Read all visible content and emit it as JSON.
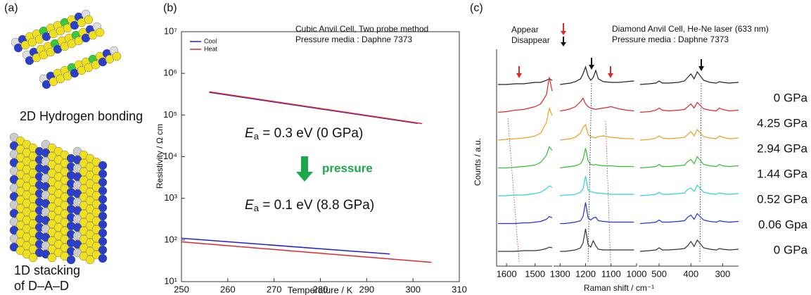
{
  "panel_a": {
    "label": "(a)",
    "captions": [
      "2D Hydrogen bonding",
      "1D stacking",
      "of D–A–D"
    ]
  },
  "chart_data": [
    {
      "type": "line",
      "panel_label": "(b)",
      "annotations": [
        "Cubic Anvil Cell, Two probe method",
        "Pressure media : Daphne 7373",
        "pressure"
      ],
      "equations": [
        {
          "symbol": "E",
          "subscript": "a",
          "text": " = 0.3 eV (0 GPa)"
        },
        {
          "symbol": "E",
          "subscript": "a",
          "text": " = 0.1 eV (8.8 GPa)"
        }
      ],
      "xlabel": "Temperature / K",
      "ylabel": "Resistivity / Ω cm",
      "log_y": true,
      "legend": "upper left",
      "xlim": [
        250,
        310
      ],
      "xticks": [
        250,
        260,
        270,
        280,
        290,
        300,
        310
      ],
      "ylim": [
        10,
        10000000
      ],
      "yticks": [
        {
          "value": 10,
          "label": "10¹"
        },
        {
          "value": 100,
          "label": "10²"
        },
        {
          "value": 1000,
          "label": "10³"
        },
        {
          "value": 10000,
          "label": "10⁴"
        },
        {
          "value": 100000,
          "label": "10⁵"
        },
        {
          "value": 1000000,
          "label": "10⁶"
        },
        {
          "value": 10000000,
          "label": "10⁷"
        }
      ],
      "series": [
        {
          "name": "Cool",
          "color": "#2222d0",
          "segments": [
            {
              "x": [
                256,
                301
              ],
              "values": [
                350000,
                63000
              ]
            },
            {
              "x": [
                250,
                295
              ],
              "values": [
                110,
                46
              ]
            }
          ]
        },
        {
          "name": "Heat",
          "color": "#e0282a",
          "segments": [
            {
              "x": [
                256,
                302
              ],
              "values": [
                360000,
                62000
              ]
            },
            {
              "x": [
                250,
                304
              ],
              "values": [
                90,
                29
              ]
            }
          ]
        }
      ]
    },
    {
      "type": "spectra",
      "panel_label": "(c)",
      "annotations": [
        "Appear",
        "Disappear",
        "Diamond Anvil Cell, He-Ne laser (633 nm)",
        "Pressure media : Daphne 7373"
      ],
      "xlabel": "Raman shift / cm⁻¹",
      "ylabel": "Counts / a.u.",
      "segments": [
        {
          "xlim": [
            1630,
            1440
          ],
          "xticks": [
            1600,
            1500
          ],
          "x": [
            1630,
            1600,
            1570,
            1540,
            1520,
            1500,
            1480,
            1460,
            1450,
            1440
          ]
        },
        {
          "xlim": [
            1320,
            1000
          ],
          "xticks": [
            1300,
            1200,
            1100,
            1000
          ],
          "x": [
            1300,
            1280,
            1260,
            1240,
            1220,
            1210,
            1200,
            1190,
            1180,
            1170,
            1160,
            1150,
            1130,
            1100,
            1070,
            1040,
            1010
          ]
        },
        {
          "xlim": [
            560,
            250
          ],
          "xticks": [
            500,
            400,
            300
          ],
          "x": [
            560,
            530,
            510,
            500,
            490,
            470,
            440,
            420,
            410,
            400,
            390,
            380,
            360,
            340,
            320,
            310,
            300,
            280,
            250
          ]
        }
      ],
      "series": [
        {
          "name": "0 GPa",
          "color": "#222222",
          "values": [
            [
              0,
              0,
              1,
              1,
              2,
              3,
              3,
              6,
              8,
              6
            ],
            [
              0,
              1,
              2,
              4,
              8,
              15,
              25,
              12,
              6,
              10,
              20,
              8,
              4,
              3,
              3,
              4,
              5
            ],
            [
              0,
              1,
              2,
              5,
              2,
              2,
              3,
              5,
              10,
              15,
              8,
              18,
              6,
              3,
              2,
              4,
              3,
              2,
              3
            ]
          ]
        },
        {
          "name": "4.25 GPa",
          "color": "#e0282a",
          "values": [
            [
              0,
              1,
              3,
              4,
              6,
              8,
              12,
              25,
              50,
              30
            ],
            [
              2,
              3,
              5,
              8,
              15,
              20,
              12,
              8,
              6,
              5,
              4,
              5,
              6,
              8,
              5,
              3,
              2
            ],
            [
              0,
              1,
              3,
              6,
              3,
              2,
              3,
              4,
              8,
              12,
              6,
              14,
              5,
              3,
              2,
              6,
              4,
              2,
              3
            ]
          ]
        },
        {
          "name": "2.94 GPa",
          "color": "#f0a020",
          "values": [
            [
              0,
              1,
              2,
              3,
              4,
              6,
              10,
              25,
              45,
              35
            ],
            [
              0,
              1,
              2,
              4,
              10,
              18,
              22,
              8,
              5,
              4,
              3,
              5,
              6,
              4,
              3,
              2,
              2
            ],
            [
              0,
              1,
              3,
              6,
              3,
              2,
              3,
              4,
              8,
              12,
              6,
              15,
              5,
              3,
              2,
              6,
              4,
              2,
              3
            ]
          ]
        },
        {
          "name": "1.44 GPa",
          "color": "#30c030",
          "values": [
            [
              0,
              0,
              1,
              2,
              3,
              4,
              8,
              18,
              30,
              25
            ],
            [
              0,
              1,
              2,
              3,
              6,
              12,
              28,
              10,
              5,
              4,
              5,
              4,
              3,
              3,
              2,
              2,
              2
            ],
            [
              0,
              1,
              2,
              5,
              2,
              2,
              3,
              4,
              9,
              12,
              6,
              16,
              5,
              3,
              2,
              5,
              3,
              2,
              3
            ]
          ]
        },
        {
          "name": "0.52 GPa",
          "color": "#30d0e0",
          "values": [
            [
              0,
              0,
              1,
              1,
              2,
              3,
              5,
              10,
              14,
              12
            ],
            [
              0,
              1,
              1,
              2,
              5,
              10,
              28,
              8,
              6,
              5,
              4,
              4,
              3,
              2,
              2,
              2,
              2
            ],
            [
              0,
              1,
              2,
              5,
              2,
              2,
              3,
              4,
              9,
              11,
              6,
              15,
              5,
              3,
              2,
              4,
              3,
              2,
              3
            ]
          ]
        },
        {
          "name": "0.06 Gpa",
          "color": "#2230d8",
          "values": [
            [
              0,
              0,
              0,
              1,
              1,
              2,
              3,
              6,
              10,
              8
            ],
            [
              0,
              0,
              1,
              2,
              4,
              10,
              30,
              8,
              5,
              8,
              9,
              4,
              3,
              2,
              2,
              2,
              2
            ],
            [
              0,
              1,
              2,
              5,
              2,
              2,
              3,
              4,
              9,
              12,
              6,
              14,
              5,
              3,
              2,
              4,
              3,
              2,
              3
            ]
          ]
        },
        {
          "name": "0 GPa",
          "color": "#333333",
          "values": [
            [
              0,
              0,
              0,
              1,
              1,
              1,
              2,
              4,
              6,
              5
            ],
            [
              0,
              0,
              1,
              2,
              5,
              12,
              32,
              10,
              6,
              15,
              8,
              3,
              2,
              2,
              2,
              2,
              2
            ],
            [
              0,
              1,
              2,
              5,
              2,
              2,
              3,
              4,
              8,
              14,
              7,
              16,
              5,
              3,
              2,
              4,
              3,
              2,
              3
            ]
          ]
        }
      ]
    }
  ]
}
